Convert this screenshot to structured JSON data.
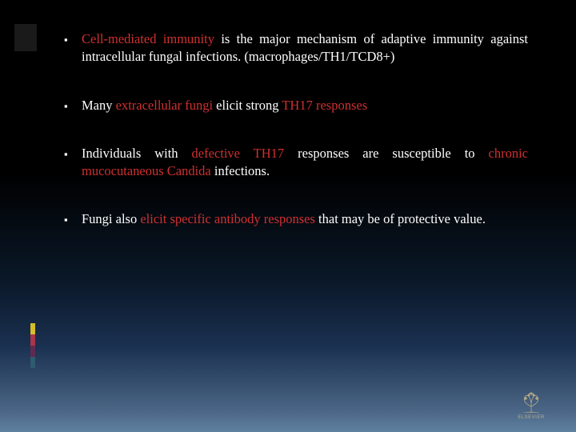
{
  "slide": {
    "background_gradient": [
      "#000000",
      "#000000",
      "#0a1828",
      "#1a3050",
      "#4a6585",
      "#6080a0"
    ],
    "side_accent_color": "#1a1a1a",
    "color_bars": [
      "#d4be2a",
      "#a8354a",
      "#5f2a52",
      "#2e5b6e"
    ],
    "text_color": "#ffffff",
    "highlight_color": "#d03030",
    "font_family": "Times New Roman",
    "font_size_pt": 16.5,
    "bullet_glyph": "▪",
    "bullets": [
      {
        "segments": [
          {
            "text": "Cell-mediated immunity",
            "red": true
          },
          {
            "text": " is the major mechanism of adaptive immunity against intracellular fungal infections. (macrophages/TH1/TCD8+)",
            "red": false
          }
        ]
      },
      {
        "segments": [
          {
            "text": "Many ",
            "red": false
          },
          {
            "text": "extracellular fungi",
            "red": true
          },
          {
            "text": " elicit strong ",
            "red": false
          },
          {
            "text": "TH17 responses",
            "red": true
          }
        ]
      },
      {
        "segments": [
          {
            "text": "Individuals with ",
            "red": false
          },
          {
            "text": "defective TH17",
            "red": true
          },
          {
            "text": " responses are susceptible to ",
            "red": false
          },
          {
            "text": "chronic mucocutaneous Candida",
            "red": true
          },
          {
            "text": " infections.",
            "red": false
          }
        ]
      },
      {
        "segments": [
          {
            "text": "Fungi also ",
            "red": false
          },
          {
            "text": "elicit specific antibody responses",
            "red": true
          },
          {
            "text": " that may be of protective value.",
            "red": false
          }
        ]
      }
    ],
    "logo_label": "ELSEVIER",
    "logo_color": "#c9b98a"
  }
}
